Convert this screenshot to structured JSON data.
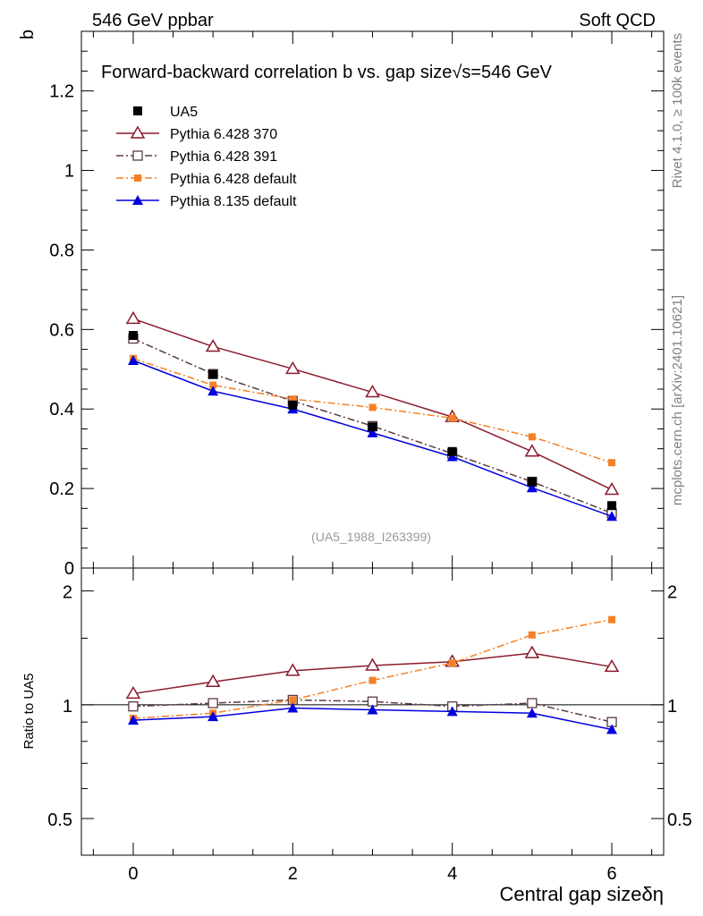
{
  "header": {
    "left": "546 GeV ppbar",
    "right": "Soft QCD"
  },
  "side_labels": {
    "rivet": "Rivet 4.1.0, ≥ 100k events",
    "mcplots": "mcplots.cern.ch [arXiv:2401.10621]"
  },
  "colors": {
    "ua5": "#000000",
    "p370": "#8b1a2b",
    "p391": "#5a3a42",
    "p6def": "#f58025",
    "p8def": "#0000dd"
  },
  "chart_data": {
    "type": "line",
    "title": "Forward-backward correlation b  vs. gap size",
    "title_suffix": "√s=546 GeV",
    "analysis_id": "(UA5_1988_I263399)",
    "xlabel": "Central gap sizeδη",
    "ylabel": "b",
    "ratio_ylabel": "Ratio to UA5",
    "x": [
      0,
      1,
      2,
      3,
      4,
      5,
      6
    ],
    "xlim": [
      -0.65,
      6.65
    ],
    "ylim": [
      0,
      1.35
    ],
    "ratio_ylim": [
      0.4,
      2.3
    ],
    "x_ticks": [
      0,
      2,
      4,
      6
    ],
    "y_ticks": [
      0.2,
      0.4,
      0.6,
      0.8,
      1,
      1.2
    ],
    "y_tick_labels": [
      "0.2",
      "0.4",
      "0.6",
      "0.8",
      "1",
      "1.2"
    ],
    "y_zero_label": "0",
    "ratio_ticks": [
      0.5,
      1,
      2
    ],
    "ratio_tick_labels": [
      "0.5",
      "1",
      "2"
    ],
    "series": [
      {
        "name": "UA5",
        "key": "ua5",
        "marker": "square-filled",
        "line": "none",
        "values": [
          0.585,
          0.487,
          0.41,
          0.355,
          0.293,
          0.217,
          0.157
        ],
        "ratio": [
          1,
          1,
          1,
          1,
          1,
          1,
          1
        ]
      },
      {
        "name": "Pythia 6.428 370",
        "key": "p370",
        "marker": "triangle-open",
        "line": "solid",
        "values": [
          0.627,
          0.557,
          0.501,
          0.442,
          0.38,
          0.293,
          0.197
        ],
        "ratio": [
          1.07,
          1.15,
          1.23,
          1.27,
          1.3,
          1.37,
          1.26
        ]
      },
      {
        "name": "Pythia 6.428 391",
        "key": "p391",
        "marker": "square-open",
        "line": "dashdot",
        "values": [
          0.577,
          0.488,
          0.42,
          0.357,
          0.288,
          0.217,
          0.138
        ],
        "ratio": [
          0.99,
          1.01,
          1.03,
          1.02,
          0.99,
          1.01,
          0.9
        ]
      },
      {
        "name": "Pythia 6.428 default",
        "key": "p6def",
        "marker": "square-filled-small",
        "line": "dashdot",
        "values": [
          0.527,
          0.46,
          0.425,
          0.404,
          0.377,
          0.33,
          0.265
        ],
        "ratio": [
          0.92,
          0.95,
          1.03,
          1.16,
          1.29,
          1.53,
          1.68
        ]
      },
      {
        "name": "Pythia 8.135 default",
        "key": "p8def",
        "marker": "triangle-filled",
        "line": "solid",
        "values": [
          0.522,
          0.445,
          0.4,
          0.34,
          0.28,
          0.202,
          0.13
        ],
        "ratio": [
          0.91,
          0.93,
          0.98,
          0.97,
          0.96,
          0.95,
          0.86
        ]
      }
    ]
  }
}
